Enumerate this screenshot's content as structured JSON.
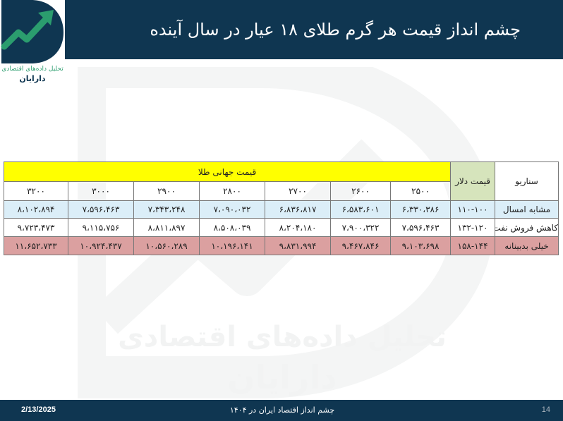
{
  "header": {
    "title": "چشم انداز قیمت هر گرم طلای ۱۸ عیار در سال آینده"
  },
  "logo": {
    "subtitle": "تحلیل داده‌های اقتصادی",
    "name": "دارایان"
  },
  "watermark": {
    "line1": "تحلیل داده‌های اقتصادی",
    "line2": "دارایان"
  },
  "colors": {
    "header_bg": "#0f3651",
    "yellow_header": "#ffff00",
    "dollar_header": "#d6e4bc",
    "row_similar": "#dbeef8",
    "row_oil": "#ffffff",
    "row_pessimistic": "#dba0a0",
    "logo_green": "#2b9d6e"
  },
  "table": {
    "scenario_header": "سناریو",
    "dollar_header": "قیمت دلار",
    "world_price_header": "قیمت جهانی طلا",
    "world_prices": [
      "۲۵۰۰",
      "۲۶۰۰",
      "۲۷۰۰",
      "۲۸۰۰",
      "۲۹۰۰",
      "۳۰۰۰",
      "۳۲۰۰"
    ],
    "rows": [
      {
        "scenario": "مشابه امسال",
        "dollar": "۱۱۰-۱۰۰",
        "values": [
          "۶،۳۳۰،۳۸۶",
          "۶،۵۸۳،۶۰۱",
          "۶،۸۳۶،۸۱۷",
          "۷،۰۹۰،۰۳۲",
          "۷،۳۴۳،۲۴۸",
          "۷،۵۹۶،۴۶۳",
          "۸،۱۰۲،۸۹۴"
        ]
      },
      {
        "scenario": "کاهش فروش نفت",
        "dollar": "۱۳۲-۱۲۰",
        "values": [
          "۷،۵۹۶،۴۶۳",
          "۷،۹۰۰،۳۲۲",
          "۸،۲۰۴،۱۸۰",
          "۸،۵۰۸،۰۳۹",
          "۸،۸۱۱،۸۹۷",
          "۹،۱۱۵،۷۵۶",
          "۹،۷۲۳،۴۷۳"
        ]
      },
      {
        "scenario": "خیلی بدبینانه",
        "dollar": "۱۵۸-۱۴۴",
        "values": [
          "۹،۱۰۳،۶۹۸",
          "۹،۴۶۷،۸۴۶",
          "۹،۸۳۱،۹۹۴",
          "۱۰،۱۹۶،۱۴۱",
          "۱۰،۵۶۰،۲۸۹",
          "۱۰،۹۲۴،۴۳۷",
          "۱۱،۶۵۲،۷۳۳"
        ]
      }
    ]
  },
  "footer": {
    "date": "2/13/2025",
    "center": "چشم انداز اقتصاد ایران در ۱۴۰۴",
    "page": "14"
  }
}
